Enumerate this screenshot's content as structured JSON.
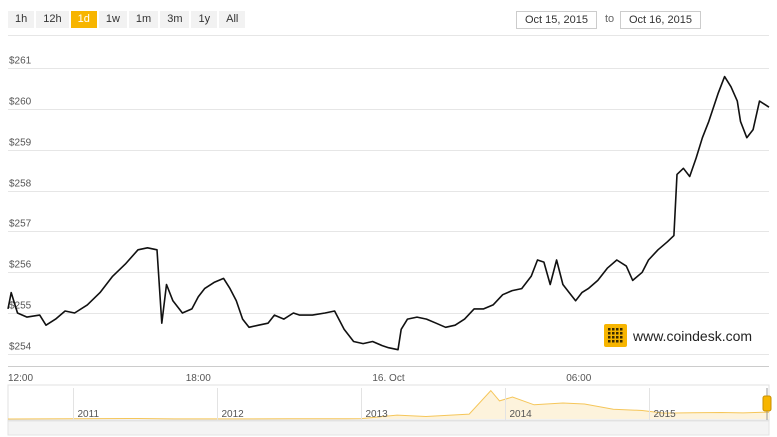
{
  "range_selector": {
    "buttons": [
      "1h",
      "12h",
      "1d",
      "1w",
      "1m",
      "3m",
      "1y",
      "All"
    ],
    "active": "1d"
  },
  "date_range": {
    "from": "Oct 15, 2015",
    "separator": "to",
    "to": "Oct 16, 2015"
  },
  "watermark": {
    "text": "www.coindesk.com",
    "icon": "coindesk-logo-icon",
    "icon_color": "#f7b500"
  },
  "colors": {
    "line": "#111111",
    "navigator_line": "#f5c65a",
    "navigator_fill": "#fdf3dc",
    "accent": "#f7b500"
  },
  "chart_data": {
    "type": "line",
    "title": "",
    "ylabel": "",
    "ylim": [
      253.7,
      261.6
    ],
    "y_ticks": [
      "$254",
      "$255",
      "$256",
      "$257",
      "$258",
      "$259",
      "$260",
      "$261"
    ],
    "y_tick_values": [
      254,
      255,
      256,
      257,
      258,
      259,
      260,
      261
    ],
    "x_ticks": [
      "12:00",
      "18:00",
      "16. Oct",
      "06:00"
    ],
    "x_tick_hours": [
      0,
      6,
      12,
      18
    ],
    "x_range_hours": [
      0,
      24
    ],
    "grid": true,
    "series": [
      {
        "values": [
          [
            0.0,
            255.1
          ],
          [
            0.1,
            255.5
          ],
          [
            0.3,
            255.0
          ],
          [
            0.6,
            254.9
          ],
          [
            1.0,
            254.95
          ],
          [
            1.2,
            254.7
          ],
          [
            1.5,
            254.85
          ],
          [
            1.8,
            255.05
          ],
          [
            2.1,
            255.0
          ],
          [
            2.5,
            255.2
          ],
          [
            2.9,
            255.5
          ],
          [
            3.3,
            255.9
          ],
          [
            3.7,
            256.2
          ],
          [
            4.1,
            256.55
          ],
          [
            4.4,
            256.6
          ],
          [
            4.7,
            256.55
          ],
          [
            4.85,
            254.75
          ],
          [
            5.0,
            255.7
          ],
          [
            5.2,
            255.3
          ],
          [
            5.5,
            255.0
          ],
          [
            5.8,
            255.1
          ],
          [
            6.0,
            255.4
          ],
          [
            6.2,
            255.6
          ],
          [
            6.5,
            255.75
          ],
          [
            6.8,
            255.85
          ],
          [
            7.0,
            255.6
          ],
          [
            7.2,
            255.3
          ],
          [
            7.4,
            254.85
          ],
          [
            7.6,
            254.65
          ],
          [
            7.9,
            254.7
          ],
          [
            8.2,
            254.75
          ],
          [
            8.4,
            254.95
          ],
          [
            8.7,
            254.85
          ],
          [
            9.0,
            255.0
          ],
          [
            9.2,
            254.95
          ],
          [
            9.6,
            254.95
          ],
          [
            10.0,
            255.0
          ],
          [
            10.3,
            255.05
          ],
          [
            10.6,
            254.6
          ],
          [
            10.9,
            254.3
          ],
          [
            11.2,
            254.25
          ],
          [
            11.5,
            254.3
          ],
          [
            11.8,
            254.2
          ],
          [
            12.0,
            254.15
          ],
          [
            12.3,
            254.1
          ],
          [
            12.4,
            254.6
          ],
          [
            12.6,
            254.85
          ],
          [
            12.9,
            254.9
          ],
          [
            13.2,
            254.85
          ],
          [
            13.5,
            254.75
          ],
          [
            13.8,
            254.65
          ],
          [
            14.1,
            254.7
          ],
          [
            14.4,
            254.85
          ],
          [
            14.7,
            255.1
          ],
          [
            15.0,
            255.1
          ],
          [
            15.3,
            255.2
          ],
          [
            15.6,
            255.45
          ],
          [
            15.9,
            255.55
          ],
          [
            16.2,
            255.6
          ],
          [
            16.5,
            255.9
          ],
          [
            16.7,
            256.3
          ],
          [
            16.9,
            256.25
          ],
          [
            17.1,
            255.7
          ],
          [
            17.3,
            256.3
          ],
          [
            17.5,
            255.7
          ],
          [
            17.7,
            255.5
          ],
          [
            17.9,
            255.3
          ],
          [
            18.1,
            255.5
          ],
          [
            18.3,
            255.6
          ],
          [
            18.6,
            255.8
          ],
          [
            18.9,
            256.1
          ],
          [
            19.2,
            256.3
          ],
          [
            19.5,
            256.15
          ],
          [
            19.7,
            255.8
          ],
          [
            20.0,
            256.0
          ],
          [
            20.2,
            256.3
          ],
          [
            20.5,
            256.55
          ],
          [
            20.8,
            256.75
          ],
          [
            21.0,
            256.9
          ],
          [
            21.1,
            258.4
          ],
          [
            21.3,
            258.55
          ],
          [
            21.5,
            258.35
          ],
          [
            21.7,
            258.8
          ],
          [
            21.9,
            259.3
          ],
          [
            22.1,
            259.7
          ],
          [
            22.4,
            260.4
          ],
          [
            22.6,
            260.8
          ],
          [
            22.8,
            260.55
          ],
          [
            23.0,
            260.2
          ],
          [
            23.1,
            259.7
          ],
          [
            23.3,
            259.3
          ],
          [
            23.5,
            259.5
          ],
          [
            23.7,
            260.2
          ],
          [
            23.9,
            260.1
          ],
          [
            24.0,
            260.05
          ]
        ]
      }
    ],
    "navigator": {
      "x_ticks": [
        "2011",
        "2012",
        "2013",
        "2014",
        "2015"
      ],
      "x_tick_years": [
        2011,
        2012,
        2013,
        2014,
        2015
      ],
      "x_range_years": [
        2010.55,
        2015.83
      ],
      "ylim": [
        0,
        1200
      ],
      "values": [
        [
          2010.55,
          0.1
        ],
        [
          2011.45,
          20
        ],
        [
          2011.7,
          5
        ],
        [
          2012.0,
          5
        ],
        [
          2012.5,
          8
        ],
        [
          2012.9,
          12
        ],
        [
          2013.0,
          14
        ],
        [
          2013.25,
          150
        ],
        [
          2013.45,
          95
        ],
        [
          2013.75,
          190
        ],
        [
          2013.9,
          1100
        ],
        [
          2013.96,
          700
        ],
        [
          2014.05,
          850
        ],
        [
          2014.2,
          550
        ],
        [
          2014.4,
          620
        ],
        [
          2014.55,
          580
        ],
        [
          2014.75,
          380
        ],
        [
          2014.95,
          330
        ],
        [
          2015.1,
          230
        ],
        [
          2015.3,
          240
        ],
        [
          2015.5,
          250
        ],
        [
          2015.65,
          235
        ],
        [
          2015.79,
          262
        ],
        [
          2015.83,
          255
        ]
      ]
    }
  }
}
